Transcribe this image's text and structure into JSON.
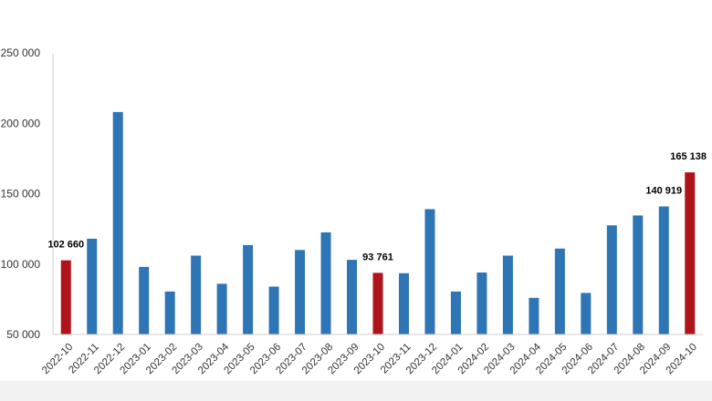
{
  "chart_data": {
    "type": "bar",
    "title": "",
    "xlabel": "",
    "ylabel": "",
    "ylim": [
      50000,
      250000
    ],
    "yticks": [
      50000,
      100000,
      150000,
      200000,
      250000
    ],
    "ytick_labels": [
      "50 000",
      "100 000",
      "150 000",
      "200 000",
      "250 000"
    ],
    "grid": false,
    "legend": "none",
    "categories": [
      "2022-10",
      "2022-11",
      "2022-12",
      "2023-01",
      "2023-02",
      "2023-03",
      "2023-04",
      "2023-05",
      "2023-06",
      "2023-07",
      "2023-08",
      "2023-09",
      "2023-10",
      "2023-11",
      "2023-12",
      "2024-01",
      "2024-02",
      "2024-03",
      "2024-04",
      "2024-05",
      "2024-06",
      "2024-07",
      "2024-08",
      "2024-09",
      "2024-10"
    ],
    "values": [
      102660,
      118000,
      208000,
      98000,
      80500,
      106000,
      86000,
      113500,
      84000,
      110000,
      122500,
      103000,
      93761,
      93500,
      139000,
      80500,
      94000,
      106000,
      76000,
      111000,
      79500,
      127500,
      134500,
      140919,
      165138
    ],
    "highlight_indices": [
      0,
      12,
      24
    ],
    "data_labels": [
      {
        "index": 0,
        "text": "102 660"
      },
      {
        "index": 12,
        "text": "93 761"
      },
      {
        "index": 23,
        "text": "140 919"
      },
      {
        "index": 24,
        "text": "165 138"
      }
    ],
    "colors": {
      "bar": "#2e75b6",
      "highlight": "#b0141b",
      "axis": "#cfcfcf"
    }
  }
}
